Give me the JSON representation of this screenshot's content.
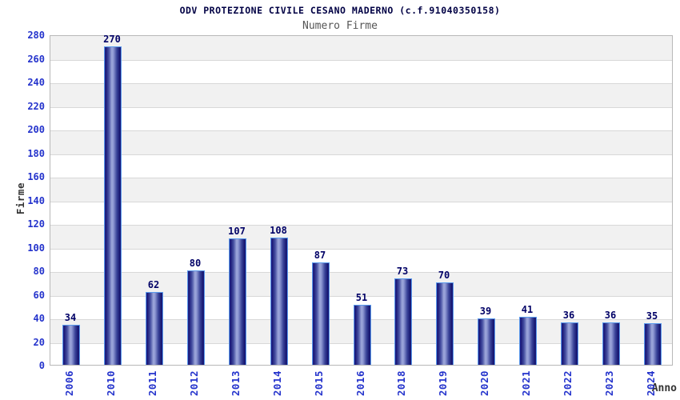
{
  "chart_data": {
    "type": "bar",
    "title": "ODV PROTEZIONE CIVILE CESANO MADERNO (c.f.91040350158)",
    "subtitle": "Numero Firme",
    "xlabel": "Anno",
    "ylabel": "Firme",
    "categories": [
      "2006",
      "2010",
      "2011",
      "2012",
      "2013",
      "2014",
      "2015",
      "2016",
      "2018",
      "2019",
      "2020",
      "2021",
      "2022",
      "2023",
      "2024"
    ],
    "values": [
      34,
      270,
      62,
      80,
      107,
      108,
      87,
      51,
      73,
      70,
      39,
      41,
      36,
      36,
      35
    ],
    "ylim": [
      0,
      280
    ],
    "ytick_step": 20,
    "grid": true,
    "bands_alternating": true,
    "legend": false
  },
  "colors": {
    "title": "#000044",
    "subtitle": "#555555",
    "axis_title": "#333333",
    "tick_label": "#2433cc",
    "value_label": "#000066",
    "bar_dark": "#1a1a78",
    "bar_light": "#9ea8db",
    "bar_border": "#5a9aec",
    "band_gray": "#f1f1f1",
    "grid_line": "#d8d8d8",
    "plot_border": "#b8b8b8",
    "background": "#ffffff"
  }
}
